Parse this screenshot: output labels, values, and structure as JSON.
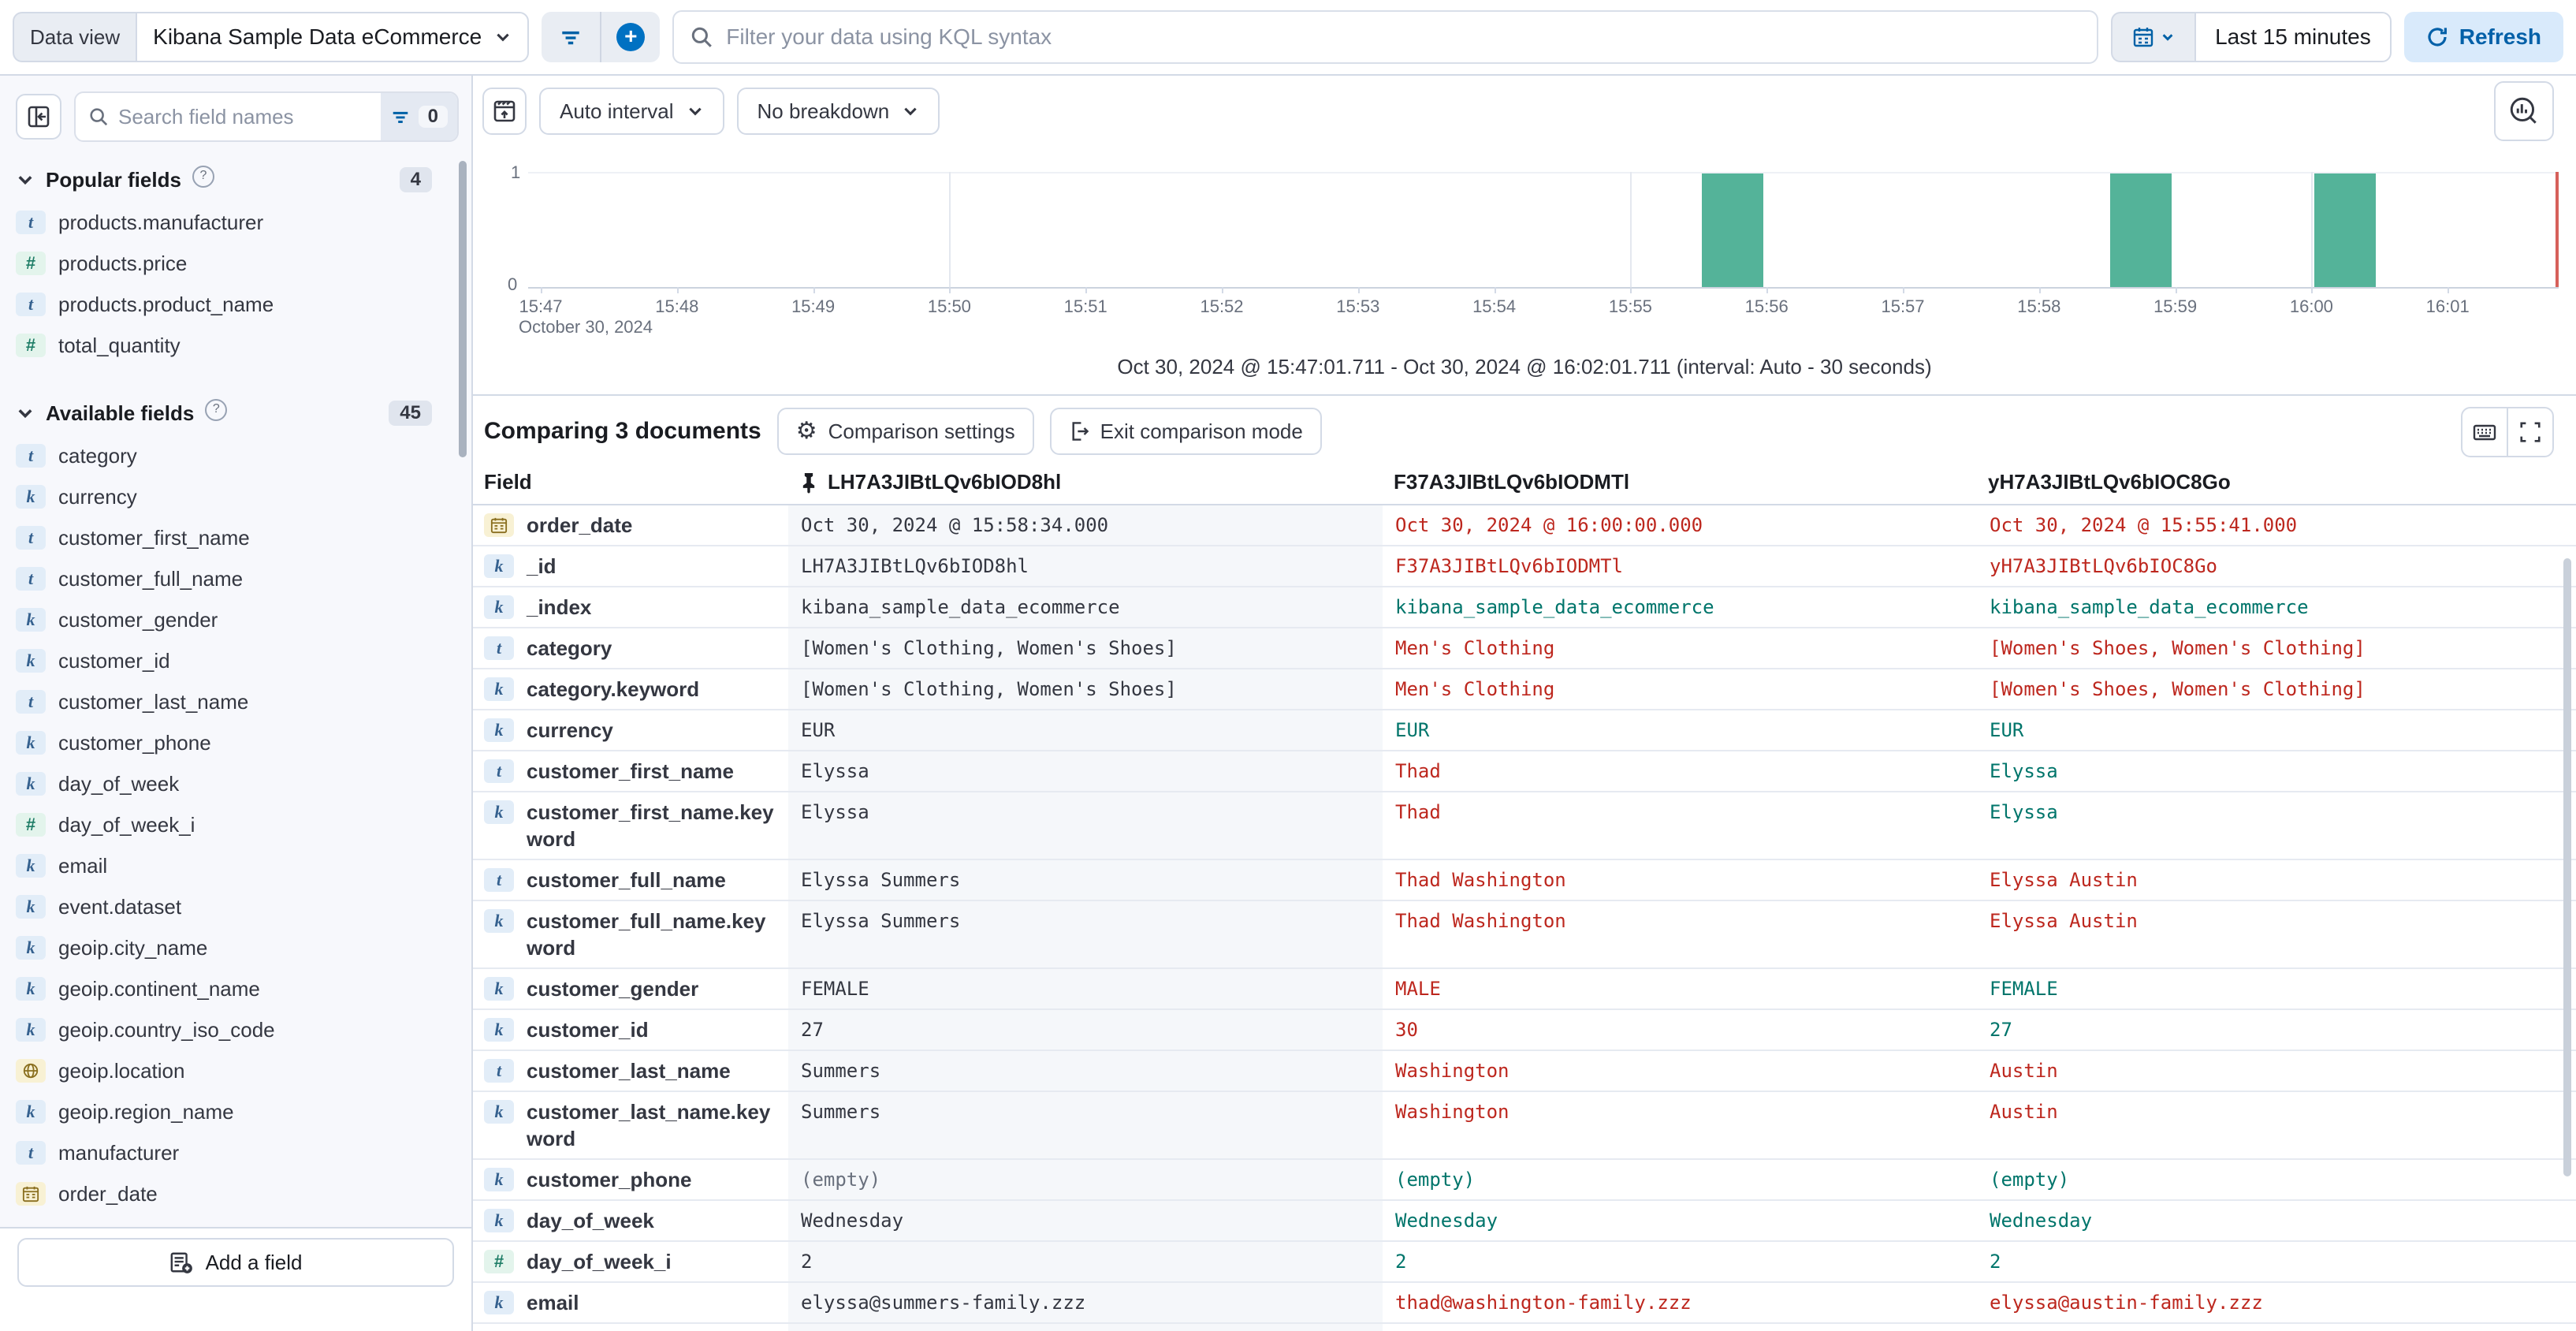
{
  "top_bar": {
    "data_view_label": "Data view",
    "data_view_value": "Kibana Sample Data eCommerce",
    "kql_placeholder": "Filter your data using KQL syntax",
    "time_range": "Last 15 minutes",
    "refresh_label": "Refresh"
  },
  "sidebar": {
    "search_placeholder": "Search field names",
    "filter_count": "0",
    "popular": {
      "title": "Popular fields",
      "count": "4",
      "fields": [
        {
          "name": "products.manufacturer",
          "type": "t"
        },
        {
          "name": "products.price",
          "type": "n"
        },
        {
          "name": "products.product_name",
          "type": "t"
        },
        {
          "name": "total_quantity",
          "type": "n"
        }
      ]
    },
    "available": {
      "title": "Available fields",
      "count": "45",
      "fields": [
        {
          "name": "category",
          "type": "t"
        },
        {
          "name": "currency",
          "type": "k"
        },
        {
          "name": "customer_first_name",
          "type": "t"
        },
        {
          "name": "customer_full_name",
          "type": "t"
        },
        {
          "name": "customer_gender",
          "type": "k"
        },
        {
          "name": "customer_id",
          "type": "k"
        },
        {
          "name": "customer_last_name",
          "type": "t"
        },
        {
          "name": "customer_phone",
          "type": "k"
        },
        {
          "name": "day_of_week",
          "type": "k"
        },
        {
          "name": "day_of_week_i",
          "type": "n"
        },
        {
          "name": "email",
          "type": "k"
        },
        {
          "name": "event.dataset",
          "type": "k"
        },
        {
          "name": "geoip.city_name",
          "type": "k"
        },
        {
          "name": "geoip.continent_name",
          "type": "k"
        },
        {
          "name": "geoip.country_iso_code",
          "type": "k"
        },
        {
          "name": "geoip.location",
          "type": "g"
        },
        {
          "name": "geoip.region_name",
          "type": "k"
        },
        {
          "name": "manufacturer",
          "type": "t"
        },
        {
          "name": "order_date",
          "type": "d"
        }
      ]
    },
    "add_field_label": "Add a field"
  },
  "chart": {
    "interval_label": "Auto interval",
    "breakdown_label": "No breakdown",
    "caption": "Oct 30, 2024 @ 15:47:01.711 - Oct 30, 2024 @ 16:02:01.711 (interval: Auto - 30 seconds)",
    "date_label": "October 30, 2024",
    "y_max_label": "1",
    "y_min_label": "0"
  },
  "chart_data": {
    "type": "bar",
    "x_ticks": [
      "15:47",
      "15:48",
      "15:49",
      "15:50",
      "15:51",
      "15:52",
      "15:53",
      "15:54",
      "15:55",
      "15:56",
      "15:57",
      "15:58",
      "15:59",
      "16:00",
      "16:01"
    ],
    "gridline_ticks": [
      "15:50",
      "15:55",
      "16:00"
    ],
    "bars": [
      {
        "time": "15:55:30",
        "count": 1
      },
      {
        "time": "15:58:30",
        "count": 1
      },
      {
        "time": "16:00:00",
        "count": 1
      }
    ],
    "ylim": [
      0,
      1
    ],
    "bar_color": "#54b399",
    "current_time_marker_color": "#d6605a"
  },
  "comparison": {
    "title": "Comparing 3 documents",
    "settings_label": "Comparison settings",
    "exit_label": "Exit comparison mode",
    "table": {
      "field_header": "Field",
      "doc_ids": [
        "LH7A3JIBtLQv6bIOD8hl",
        "F37A3JIBtLQv6bIODMTl",
        "yH7A3JIBtLQv6bIOC8Go"
      ],
      "diff_color": "#bd271e",
      "match_color": "#00756b",
      "rows": [
        {
          "field": "order_date",
          "type": "d",
          "values": [
            {
              "text": "Oct 30, 2024 @ 15:58:34.000",
              "style": "base"
            },
            {
              "text": "Oct 30, 2024 @ 16:00:00.000",
              "style": "diff"
            },
            {
              "text": "Oct 30, 2024 @ 15:55:41.000",
              "style": "diff"
            }
          ]
        },
        {
          "field": "_id",
          "type": "k",
          "values": [
            {
              "text": "LH7A3JIBtLQv6bIOD8hl",
              "style": "base"
            },
            {
              "text": "F37A3JIBtLQv6bIODMTl",
              "style": "diff"
            },
            {
              "text": "yH7A3JIBtLQv6bIOC8Go",
              "style": "diff"
            }
          ]
        },
        {
          "field": "_index",
          "type": "k",
          "values": [
            {
              "text": "kibana_sample_data_ecommerce",
              "style": "base"
            },
            {
              "text": "kibana_sample_data_ecommerce",
              "style": "match"
            },
            {
              "text": "kibana_sample_data_ecommerce",
              "style": "match"
            }
          ]
        },
        {
          "field": "category",
          "type": "t",
          "values": [
            {
              "text": "[Women's Clothing, Women's Shoes]",
              "style": "base"
            },
            {
              "text": "Men's Clothing",
              "style": "diff"
            },
            {
              "text": "[Women's Shoes, Women's Clothing]",
              "style": "diff"
            }
          ]
        },
        {
          "field": "category.keyword",
          "type": "k",
          "values": [
            {
              "text": "[Women's Clothing, Women's Shoes]",
              "style": "base"
            },
            {
              "text": "Men's Clothing",
              "style": "diff"
            },
            {
              "text": "[Women's Shoes, Women's Clothing]",
              "style": "diff"
            }
          ]
        },
        {
          "field": "currency",
          "type": "k",
          "values": [
            {
              "text": "EUR",
              "style": "base"
            },
            {
              "text": "EUR",
              "style": "match"
            },
            {
              "text": "EUR",
              "style": "match"
            }
          ]
        },
        {
          "field": "customer_first_name",
          "type": "t",
          "values": [
            {
              "text": "Elyssa",
              "style": "base"
            },
            {
              "text": "Thad",
              "style": "diff"
            },
            {
              "text": "Elyssa",
              "style": "match"
            }
          ]
        },
        {
          "field": "customer_first_name.keyword",
          "type": "k",
          "values": [
            {
              "text": "Elyssa",
              "style": "base"
            },
            {
              "text": "Thad",
              "style": "diff"
            },
            {
              "text": "Elyssa",
              "style": "match"
            }
          ]
        },
        {
          "field": "customer_full_name",
          "type": "t",
          "values": [
            {
              "text": "Elyssa Summers",
              "style": "base"
            },
            {
              "text": "Thad Washington",
              "style": "diff"
            },
            {
              "text": "Elyssa Austin",
              "style": "diff"
            }
          ]
        },
        {
          "field": "customer_full_name.keyword",
          "type": "k",
          "values": [
            {
              "text": "Elyssa Summers",
              "style": "base"
            },
            {
              "text": "Thad Washington",
              "style": "diff"
            },
            {
              "text": "Elyssa Austin",
              "style": "diff"
            }
          ]
        },
        {
          "field": "customer_gender",
          "type": "k",
          "values": [
            {
              "text": "FEMALE",
              "style": "base"
            },
            {
              "text": "MALE",
              "style": "diff"
            },
            {
              "text": "FEMALE",
              "style": "match"
            }
          ]
        },
        {
          "field": "customer_id",
          "type": "k",
          "values": [
            {
              "text": "27",
              "style": "base"
            },
            {
              "text": "30",
              "style": "diff"
            },
            {
              "text": "27",
              "style": "match"
            }
          ]
        },
        {
          "field": "customer_last_name",
          "type": "t",
          "values": [
            {
              "text": "Summers",
              "style": "base"
            },
            {
              "text": "Washington",
              "style": "diff"
            },
            {
              "text": "Austin",
              "style": "diff"
            }
          ]
        },
        {
          "field": "customer_last_name.keyword",
          "type": "k",
          "values": [
            {
              "text": "Summers",
              "style": "base"
            },
            {
              "text": "Washington",
              "style": "diff"
            },
            {
              "text": "Austin",
              "style": "diff"
            }
          ]
        },
        {
          "field": "customer_phone",
          "type": "k",
          "values": [
            {
              "text": "(empty)",
              "style": "empty"
            },
            {
              "text": "(empty)",
              "style": "match"
            },
            {
              "text": "(empty)",
              "style": "match"
            }
          ]
        },
        {
          "field": "day_of_week",
          "type": "k",
          "values": [
            {
              "text": "Wednesday",
              "style": "base"
            },
            {
              "text": "Wednesday",
              "style": "match"
            },
            {
              "text": "Wednesday",
              "style": "match"
            }
          ]
        },
        {
          "field": "day_of_week_i",
          "type": "n",
          "values": [
            {
              "text": "2",
              "style": "base"
            },
            {
              "text": "2",
              "style": "match"
            },
            {
              "text": "2",
              "style": "match"
            }
          ]
        },
        {
          "field": "email",
          "type": "k",
          "values": [
            {
              "text": "elyssa@summers-family.zzz",
              "style": "base"
            },
            {
              "text": "thad@washington-family.zzz",
              "style": "diff"
            },
            {
              "text": "elyssa@austin-family.zzz",
              "style": "diff"
            }
          ]
        }
      ]
    }
  }
}
